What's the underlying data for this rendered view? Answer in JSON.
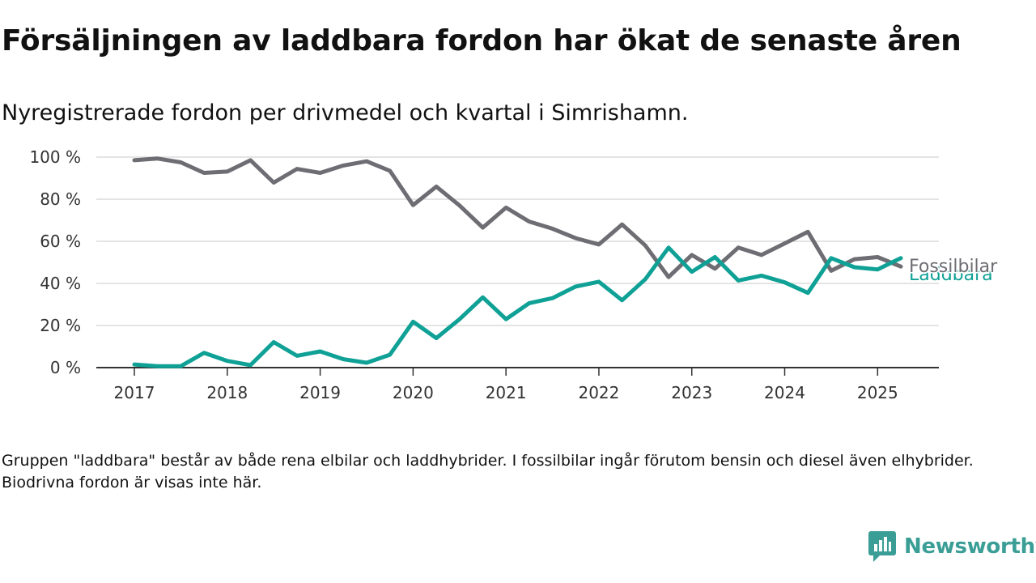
{
  "title": "Försäljningen av laddbara fordon har ökat de senaste åren",
  "subtitle": "Nyregistrerade fordon per drivmedel och kvartal i Simrishamn.",
  "note": "Gruppen \"laddbara\" består av både rena elbilar och laddhybrider. I fossilbilar ingår förutom bensin och diesel även elhybrider. Biodrivna fordon är visas inte här.",
  "brand": {
    "name": "Newsworthy",
    "icon": "newsworthy-logo-icon",
    "color": "#3a9e96"
  },
  "chart_data": {
    "type": "line",
    "x_unit": "quarter",
    "x": [
      "2017-Q1",
      "2017-Q2",
      "2017-Q3",
      "2017-Q4",
      "2018-Q1",
      "2018-Q2",
      "2018-Q3",
      "2018-Q4",
      "2019-Q1",
      "2019-Q2",
      "2019-Q3",
      "2019-Q4",
      "2020-Q1",
      "2020-Q2",
      "2020-Q3",
      "2020-Q4",
      "2021-Q1",
      "2021-Q2",
      "2021-Q3",
      "2021-Q4",
      "2022-Q1",
      "2022-Q2",
      "2022-Q3",
      "2022-Q4",
      "2023-Q1",
      "2023-Q2",
      "2023-Q3",
      "2023-Q4",
      "2024-Q1",
      "2024-Q2",
      "2024-Q3",
      "2024-Q4",
      "2025-Q1",
      "2025-Q2"
    ],
    "xticks": [
      {
        "label": "2017",
        "index": 0
      },
      {
        "label": "2018",
        "index": 4
      },
      {
        "label": "2019",
        "index": 8
      },
      {
        "label": "2020",
        "index": 12
      },
      {
        "label": "2021",
        "index": 16
      },
      {
        "label": "2022",
        "index": 20
      },
      {
        "label": "2023",
        "index": 24
      },
      {
        "label": "2024",
        "index": 28
      },
      {
        "label": "2025",
        "index": 32
      }
    ],
    "yticks": [
      {
        "value": 0,
        "label": "0 %"
      },
      {
        "value": 20,
        "label": "20 %"
      },
      {
        "value": 40,
        "label": "40 %"
      },
      {
        "value": 60,
        "label": "60 %"
      },
      {
        "value": 80,
        "label": "80 %"
      },
      {
        "value": 100,
        "label": "100 %"
      }
    ],
    "ylim": [
      0,
      100
    ],
    "grid": true,
    "series": [
      {
        "name": "Fossilbilar",
        "color": "#6e6d73",
        "values": [
          98.5,
          99.3,
          97.5,
          92.5,
          93.1,
          98.5,
          87.9,
          94.4,
          92.5,
          96.0,
          98.0,
          93.5,
          77.2,
          86.0,
          77.0,
          66.5,
          76.0,
          69.4,
          66.0,
          61.5,
          58.5,
          68.0,
          58.0,
          43.0,
          53.5,
          47.0,
          57.0,
          53.5,
          59.0,
          64.5,
          46.0,
          51.5,
          52.5,
          48.0
        ]
      },
      {
        "name": "Laddbara",
        "color": "#10a196",
        "values": [
          1.5,
          0.7,
          0.7,
          7.0,
          3.2,
          1.2,
          12.1,
          5.6,
          7.7,
          4.0,
          2.3,
          6.1,
          21.8,
          14.0,
          23.0,
          33.4,
          23.0,
          30.6,
          33.0,
          38.5,
          40.8,
          32.0,
          42.0,
          57.0,
          45.5,
          52.5,
          41.4,
          43.7,
          40.5,
          35.5,
          52.0,
          47.7,
          46.6,
          52.0
        ]
      }
    ]
  }
}
